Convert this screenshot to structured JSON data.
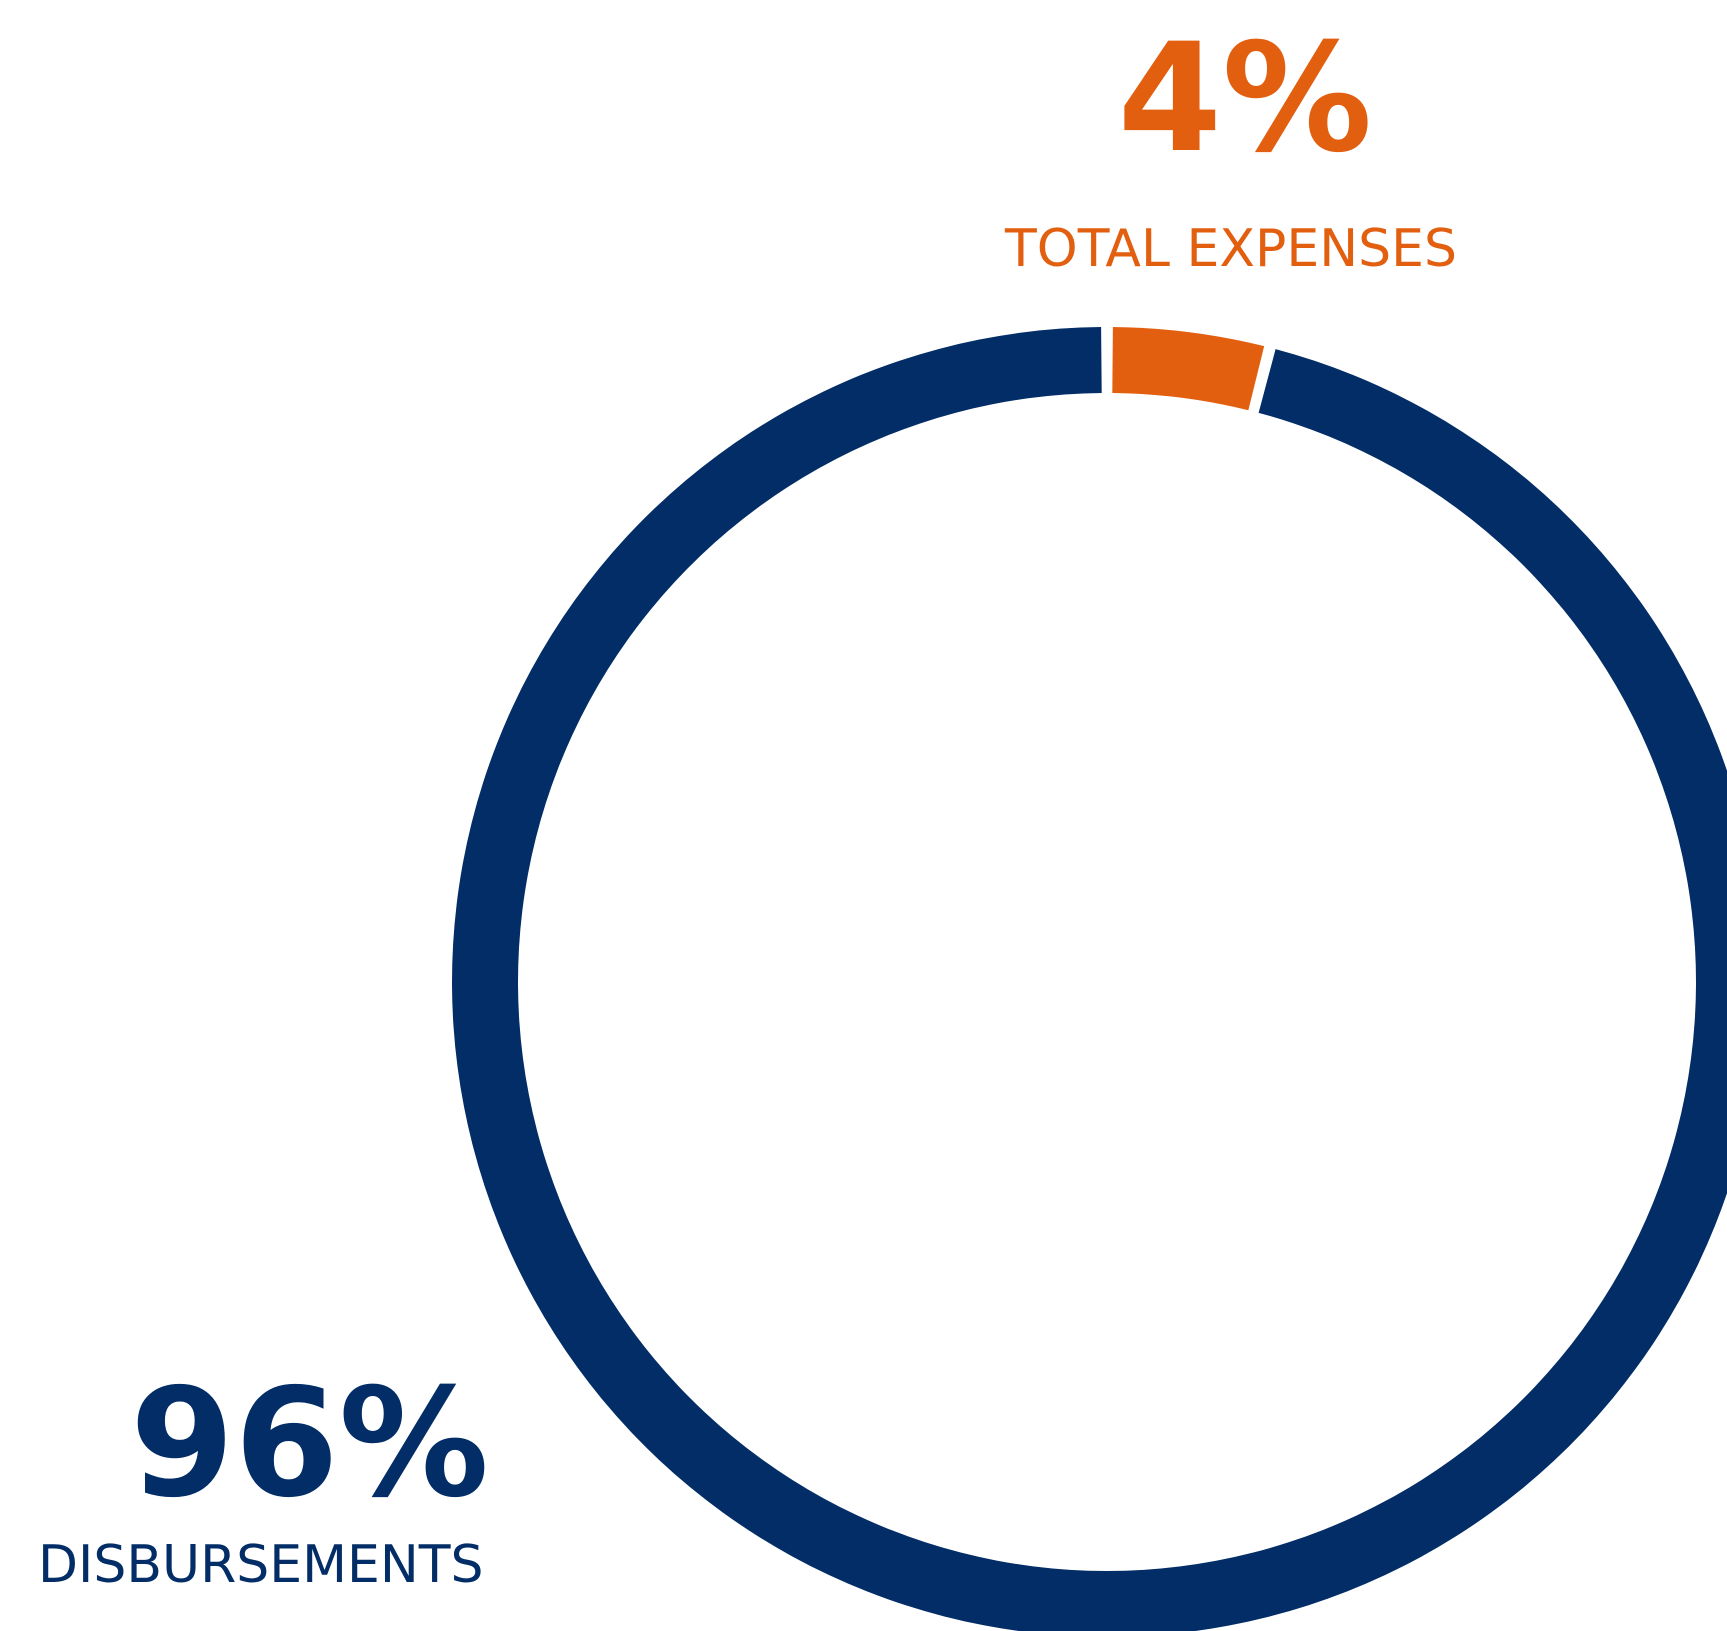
{
  "chart_data": {
    "type": "pie",
    "categories": [
      "TOTAL EXPENSES",
      "DISBURSEMENTS"
    ],
    "values": [
      4,
      96
    ],
    "value_labels": [
      "4%",
      "96%"
    ],
    "colors": [
      "#e35f10",
      "#022d66"
    ],
    "donut": true
  }
}
